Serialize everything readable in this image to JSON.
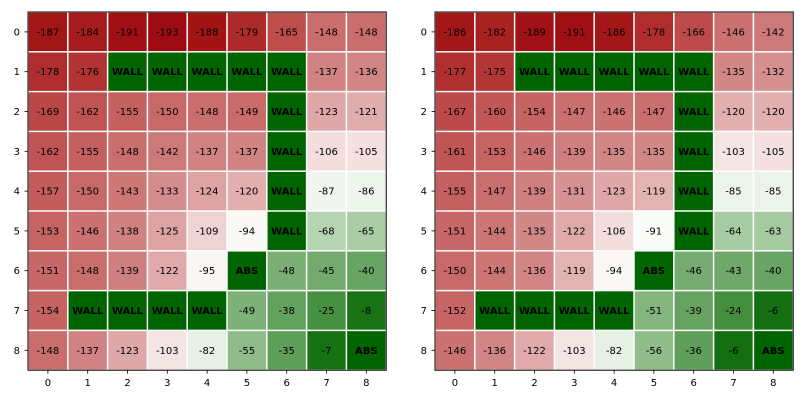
{
  "chart_data": [
    {
      "type": "heatmap",
      "x_ticks": [
        "0",
        "1",
        "2",
        "3",
        "4",
        "5",
        "6",
        "7",
        "8"
      ],
      "y_ticks": [
        "0",
        "1",
        "2",
        "3",
        "4",
        "5",
        "6",
        "7",
        "8"
      ],
      "cells": [
        [
          "-187",
          "-184",
          "-191",
          "-193",
          "-188",
          "-179",
          "-165",
          "-148",
          "-148"
        ],
        [
          "-178",
          "-176",
          "WALL",
          "WALL",
          "WALL",
          "WALL",
          "WALL",
          "-137",
          "-136"
        ],
        [
          "-169",
          "-162",
          "-155",
          "-150",
          "-148",
          "-149",
          "WALL",
          "-123",
          "-121"
        ],
        [
          "-162",
          "-155",
          "-148",
          "-142",
          "-137",
          "-137",
          "WALL",
          "-106",
          "-105"
        ],
        [
          "-157",
          "-150",
          "-143",
          "-133",
          "-124",
          "-120",
          "WALL",
          "-87",
          "-86"
        ],
        [
          "-153",
          "-146",
          "-138",
          "-125",
          "-109",
          "-94",
          "WALL",
          "-68",
          "-65"
        ],
        [
          "-151",
          "-148",
          "-139",
          "-122",
          "-95",
          "ABS",
          "-48",
          "-45",
          "-40"
        ],
        [
          "-154",
          "WALL",
          "WALL",
          "WALL",
          "WALL",
          "-49",
          "-38",
          "-25",
          "-8"
        ],
        [
          "-148",
          "-137",
          "-123",
          "-103",
          "-82",
          "-55",
          "-35",
          "-7",
          "ABS"
        ]
      ]
    },
    {
      "type": "heatmap",
      "x_ticks": [
        "0",
        "1",
        "2",
        "3",
        "4",
        "5",
        "6",
        "7",
        "8"
      ],
      "y_ticks": [
        "0",
        "1",
        "2",
        "3",
        "4",
        "5",
        "6",
        "7",
        "8"
      ],
      "cells": [
        [
          "-186",
          "-182",
          "-189",
          "-191",
          "-186",
          "-178",
          "-166",
          "-146",
          "-142"
        ],
        [
          "-177",
          "-175",
          "WALL",
          "WALL",
          "WALL",
          "WALL",
          "WALL",
          "-135",
          "-132"
        ],
        [
          "-167",
          "-160",
          "-154",
          "-147",
          "-146",
          "-147",
          "WALL",
          "-120",
          "-120"
        ],
        [
          "-161",
          "-153",
          "-146",
          "-139",
          "-135",
          "-135",
          "WALL",
          "-103",
          "-105"
        ],
        [
          "-155",
          "-147",
          "-139",
          "-131",
          "-123",
          "-119",
          "WALL",
          "-85",
          "-85"
        ],
        [
          "-151",
          "-144",
          "-135",
          "-122",
          "-106",
          "-91",
          "WALL",
          "-64",
          "-63"
        ],
        [
          "-150",
          "-144",
          "-136",
          "-119",
          "-94",
          "ABS",
          "-46",
          "-43",
          "-40"
        ],
        [
          "-152",
          "WALL",
          "WALL",
          "WALL",
          "WALL",
          "-51",
          "-39",
          "-24",
          "-6"
        ],
        [
          "-146",
          "-136",
          "-122",
          "-103",
          "-82",
          "-56",
          "-36",
          "-6",
          "ABS"
        ]
      ]
    }
  ],
  "colors": {
    "wall": "#006400",
    "abs": "#006400",
    "grid_line": "#ffffff",
    "frame": "#000000"
  }
}
